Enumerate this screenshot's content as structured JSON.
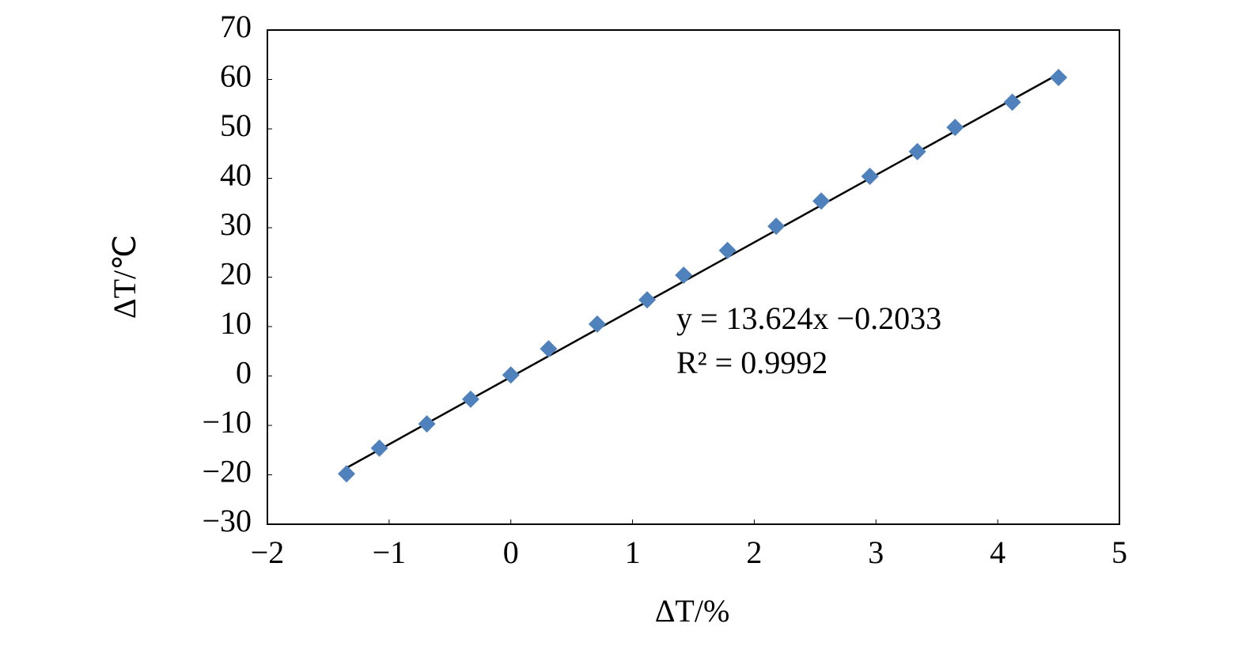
{
  "chart_data": {
    "type": "scatter",
    "x_label": "ΔT/%",
    "y_label": "ΔT/℃",
    "x": [
      -1.35,
      -1.08,
      -0.69,
      -0.33,
      0,
      0.31,
      0.71,
      1.12,
      1.42,
      1.78,
      2.18,
      2.55,
      2.95,
      3.34,
      3.65,
      4.12,
      4.5
    ],
    "series": [
      {
        "name": "ΔT",
        "color": "#4f81bd",
        "values": [
          -19.8,
          -14.6,
          -9.7,
          -4.7,
          0.2,
          5.5,
          10.5,
          15.4,
          20.4,
          25.4,
          30.3,
          35.4,
          40.4,
          45.4,
          50.3,
          55.4,
          60.4
        ]
      }
    ],
    "trendline": {
      "slope": 13.624,
      "intercept": -0.2033,
      "color": "#000000",
      "equation": "y = 13.624x −0.2033",
      "r2": "R² = 0.9992"
    },
    "xlim": [
      -2,
      5
    ],
    "xticks": [
      {
        "value": -2,
        "label": "−2"
      },
      {
        "value": -1,
        "label": "−1"
      },
      0,
      1,
      2,
      3,
      4,
      5
    ],
    "ylim": [
      -30,
      70
    ],
    "yticks": [
      {
        "value": -30,
        "label": "−30"
      },
      {
        "value": -20,
        "label": "−20"
      },
      {
        "value": -10,
        "label": "−10"
      },
      0,
      10,
      20,
      30,
      40,
      50,
      60,
      70
    ],
    "grid": false
  }
}
